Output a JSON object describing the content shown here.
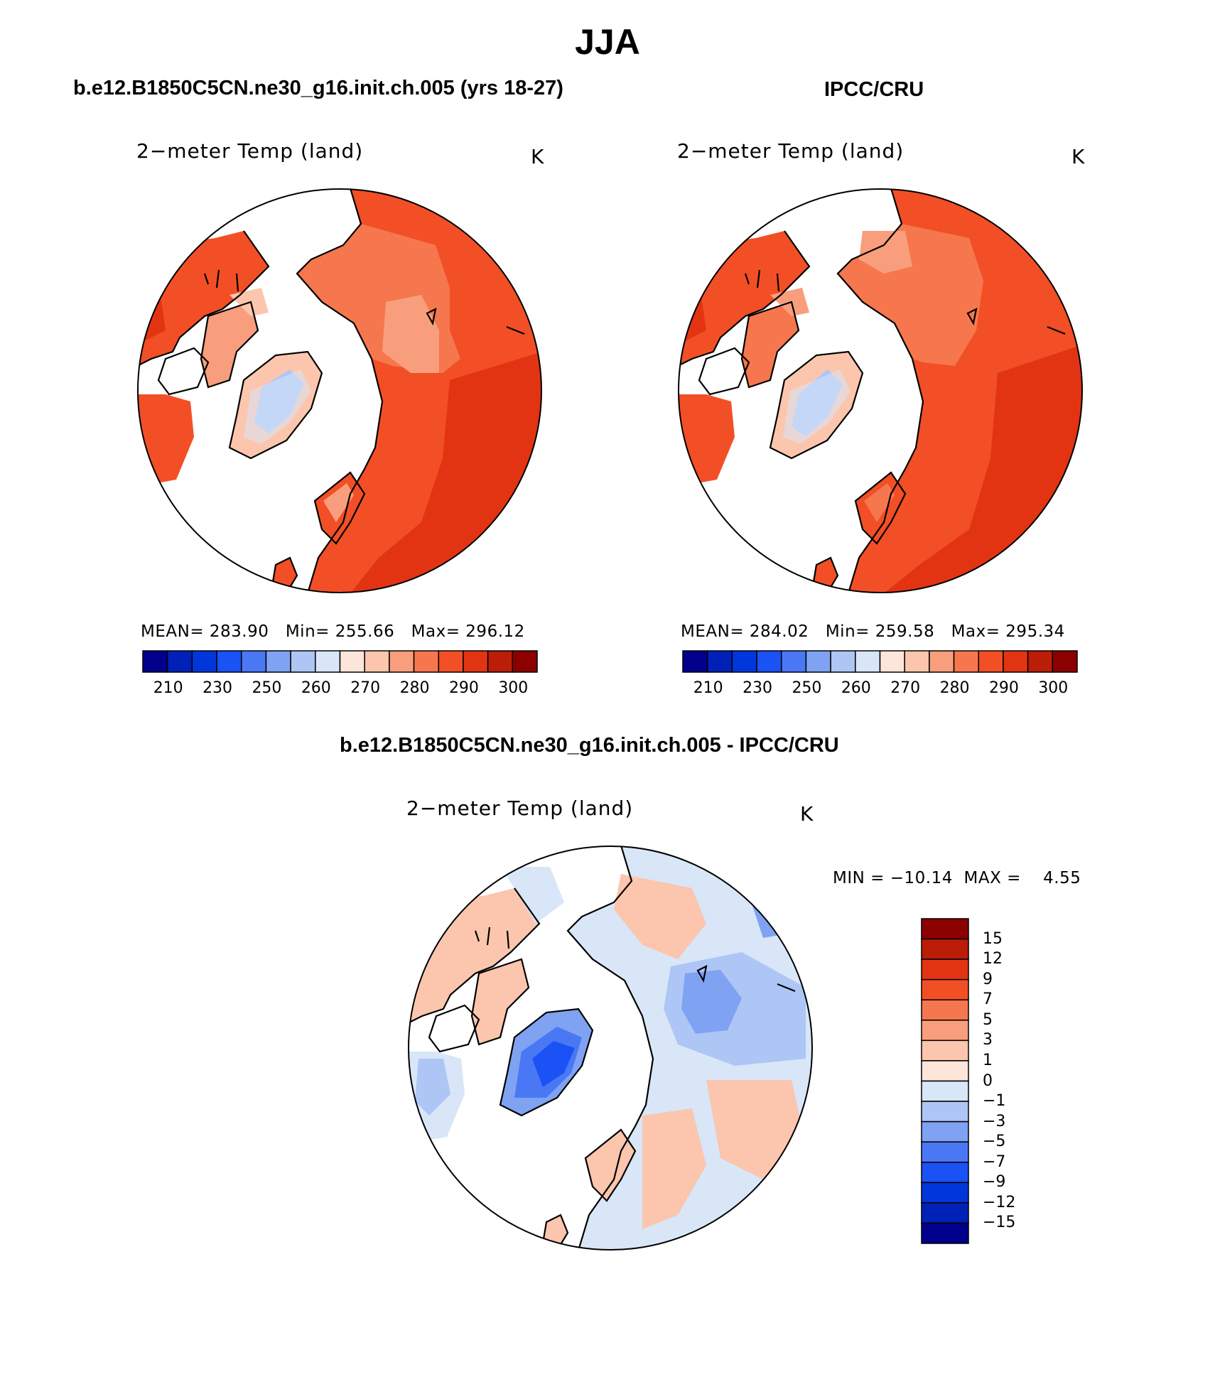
{
  "page": {
    "title": "JJA"
  },
  "panels": [
    {
      "id": "model",
      "heading": "b.e12.B1850C5CN.ne30_g16.init.ch.005 (yrs 18-27)",
      "variable_label": "2−meter Temp (land)",
      "units": "K",
      "stats": {
        "mean_label": "MEAN=",
        "mean": "283.90",
        "min_label": "Min=",
        "min": "255.66",
        "max_label": "Max=",
        "max": "296.12"
      }
    },
    {
      "id": "obs",
      "heading": "IPCC/CRU",
      "variable_label": "2−meter Temp (land)",
      "units": "K",
      "stats": {
        "mean_label": "MEAN=",
        "mean": "284.02",
        "min_label": "Min=",
        "min": "259.58",
        "max_label": "Max=",
        "max": "295.34"
      }
    }
  ],
  "diff_panel": {
    "heading": "b.e12.B1850C5CN.ne30_g16.init.ch.005 - IPCC/CRU",
    "variable_label": "2−meter Temp (land)",
    "units": "K",
    "min_label": "MIN = ",
    "min": "−10.14",
    "max_label": "MAX = ",
    "max": "4.55"
  },
  "colorbars": {
    "absolute": {
      "colors": [
        "#00008c",
        "#0021b8",
        "#0037dd",
        "#1a52f5",
        "#4a78f5",
        "#7fa2f3",
        "#aec6f5",
        "#d8e6f8",
        "#fde6d9",
        "#fbc6ad",
        "#f89e7c",
        "#f6774d",
        "#f24f26",
        "#e23412",
        "#ba1d08",
        "#8c0000"
      ],
      "tick_labels": [
        "210",
        "230",
        "250",
        "260",
        "270",
        "280",
        "290",
        "300"
      ]
    },
    "difference": {
      "colors": [
        "#00008c",
        "#0021b8",
        "#0037dd",
        "#1a52f5",
        "#4a78f5",
        "#7fa2f3",
        "#aec6f5",
        "#d8e6f8",
        "#fde6d9",
        "#fbc6ad",
        "#f89e7c",
        "#f6774d",
        "#f24f26",
        "#e23412",
        "#ba1d08",
        "#8c0000"
      ],
      "tick_labels": [
        "15",
        "12",
        "9",
        "7",
        "5",
        "3",
        "1",
        "0",
        "−1",
        "−3",
        "−5",
        "−7",
        "−9",
        "−12",
        "−15"
      ]
    }
  },
  "map_colors": {
    "warm_dark": "#e23412",
    "warm": "#f24f26",
    "warm_mid": "#f6774d",
    "warm_light": "#f89e7c",
    "warm_pale": "#fbc6ad",
    "cold_pale": "#d8e6f8",
    "cold_light": "#aec6f5",
    "cold_mid": "#7fa2f3",
    "cold": "#4a78f5",
    "cold_dark": "#1a52f5",
    "ocean": "#ffffff"
  }
}
